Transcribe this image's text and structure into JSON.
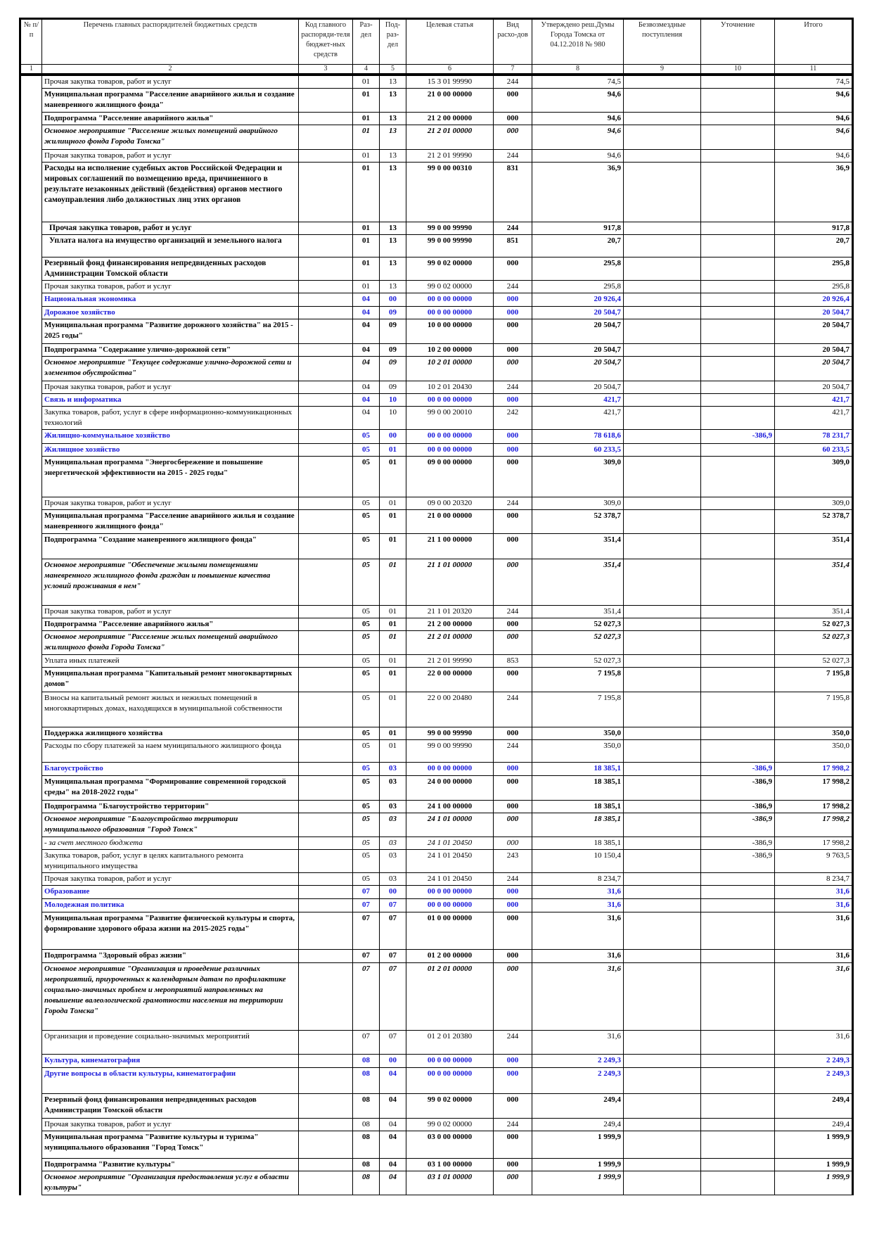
{
  "header": {
    "cols": [
      "№ п/п",
      "Перечень главных распорядителей бюджетных средств",
      "Код главного распоряди-теля бюджет-ных средств",
      "Раз-дел",
      "Под-раз-дел",
      "Целевая статья",
      "Вид расхо-дов",
      "Утверждено реш.Думы Города Томска от 04.12.2018 № 980",
      "Безвозмездные поступления",
      "Уточнение",
      "Итого"
    ],
    "nums": [
      "1",
      "2",
      "3",
      "4",
      "5",
      "6",
      "7",
      "8",
      "9",
      "10",
      "11"
    ]
  },
  "rows": [
    {
      "s": "n",
      "name": "Прочая закупка товаров, работ и услуг",
      "rz": "01",
      "pr": "13",
      "cs": "15 3 01 99990",
      "vr": "244",
      "c8": "74,5",
      "c9": "",
      "c10": "",
      "c11": "74,5"
    },
    {
      "s": "b",
      "name": "Муниципальная программа \"Расселение аварийного жилья и создание маневренного жилищного фонда\"",
      "rz": "01",
      "pr": "13",
      "cs": "21 0 00 00000",
      "vr": "000",
      "c8": "94,6",
      "c9": "",
      "c10": "",
      "c11": "94,6"
    },
    {
      "s": "b",
      "name": "Подпрограмма \"Расселение аварийного жилья\"",
      "rz": "01",
      "pr": "13",
      "cs": "21 2 00 00000",
      "vr": "000",
      "c8": "94,6",
      "c9": "",
      "c10": "",
      "c11": "94,6"
    },
    {
      "s": "i",
      "name": "Основное мероприятие \"Расселение жилых помещений аварийного жилищного фонда Города Томска\"",
      "rz": "01",
      "pr": "13",
      "cs": "21 2 01 00000",
      "vr": "000",
      "c8": "94,6",
      "c9": "",
      "c10": "",
      "c11": "94,6"
    },
    {
      "s": "n",
      "name": "Прочая закупка товаров, работ и услуг",
      "rz": "01",
      "pr": "13",
      "cs": "21 2 01 99990",
      "vr": "244",
      "c8": "94,6",
      "c9": "",
      "c10": "",
      "c11": "94,6"
    },
    {
      "s": "b2",
      "name": "Расходы на исполнение судебных актов Российской Федерации и мировых соглашений по возмещению вреда, причиненного в результате незаконных действий (бездействия) органов местного самоуправления либо должностных лиц этих органов",
      "rz": "01",
      "pr": "13",
      "cs": "99 0 00 00310",
      "vr": "831",
      "c8": "36,9",
      "c9": "",
      "c10": "",
      "c11": "36,9"
    },
    {
      "s": "b2",
      "name": "Прочая закупка товаров, работ и услуг",
      "rz": "01",
      "pr": "13",
      "cs": "99 0 00 99990",
      "vr": "244",
      "c8": "917,8",
      "c9": "",
      "c10": "",
      "c11": "917,8"
    },
    {
      "s": "b2",
      "name": "Уплата налога на имущество организаций и земельного налога",
      "rz": "01",
      "pr": "13",
      "cs": "99 0 00 99990",
      "vr": "851",
      "c8": "20,7",
      "c9": "",
      "c10": "",
      "c11": "20,7"
    },
    {
      "s": "b2",
      "name": "Резервный фонд финансирования непредвиденных расходов Администрации Томской области",
      "rz": "01",
      "pr": "13",
      "cs": "99 0 02 00000",
      "vr": "000",
      "c8": "295,8",
      "c9": "",
      "c10": "",
      "c11": "295,8"
    },
    {
      "s": "n",
      "name": "Прочая закупка товаров, работ и услуг",
      "rz": "01",
      "pr": "13",
      "cs": "99 0 02 00000",
      "vr": "244",
      "c8": "295,8",
      "c9": "",
      "c10": "",
      "c11": "295,8"
    },
    {
      "s": "blue",
      "name": "Национальная экономика",
      "rz": "04",
      "pr": "00",
      "cs": "00 0 00 00000",
      "vr": "000",
      "c8": "20 926,4",
      "c9": "",
      "c10": "",
      "c11": "20 926,4"
    },
    {
      "s": "blue",
      "name": "Дорожное хозяйство",
      "rz": "04",
      "pr": "09",
      "cs": "00 0 00 00000",
      "vr": "000",
      "c8": "20 504,7",
      "c9": "",
      "c10": "",
      "c11": "20 504,7"
    },
    {
      "s": "b",
      "name": "Муниципальная программа \"Развитие дорожного хозяйства\" на 2015 - 2025 годы\"",
      "rz": "04",
      "pr": "09",
      "cs": "10 0 00 00000",
      "vr": "000",
      "c8": "20 504,7",
      "c9": "",
      "c10": "",
      "c11": "20 504,7"
    },
    {
      "s": "b",
      "name": "Подпрограмма \"Содержание улично-дорожной сети\"",
      "rz": "04",
      "pr": "09",
      "cs": "10 2 00 00000",
      "vr": "000",
      "c8": "20 504,7",
      "c9": "",
      "c10": "",
      "c11": "20 504,7"
    },
    {
      "s": "i",
      "name": "Основное мероприятие \"Текущее содержание улично-дорожной сети и элементов обустройства\"",
      "rz": "04",
      "pr": "09",
      "cs": "10 2 01 00000",
      "vr": "000",
      "c8": "20 504,7",
      "c9": "",
      "c10": "",
      "c11": "20 504,7"
    },
    {
      "s": "n",
      "name": "Прочая закупка товаров, работ и услуг",
      "rz": "04",
      "pr": "09",
      "cs": "10 2 01 20430",
      "vr": "244",
      "c8": "20 504,7",
      "c9": "",
      "c10": "",
      "c11": "20 504,7"
    },
    {
      "s": "blue",
      "name": "Связь и информатика",
      "rz": "04",
      "pr": "10",
      "cs": "00 0 00 00000",
      "vr": "000",
      "c8": "421,7",
      "c9": "",
      "c10": "",
      "c11": "421,7"
    },
    {
      "s": "n0",
      "name": "Закупка товаров, работ, услуг в сфере информационно-коммуникационных технологий",
      "rz": "04",
      "pr": "10",
      "cs": "99 0 00 20010",
      "vr": "242",
      "c8": "421,7",
      "c9": "",
      "c10": "",
      "c11": "421,7"
    },
    {
      "s": "blue",
      "name": "Жилищно-коммунальное хозяйство",
      "rz": "05",
      "pr": "00",
      "cs": "00 0 00 00000",
      "vr": "000",
      "c8": "78 618,6",
      "c9": "",
      "c10": "-386,9",
      "c11": "78 231,7"
    },
    {
      "s": "blue",
      "name": "Жилищное хозяйство",
      "rz": "05",
      "pr": "01",
      "cs": "00 0 00 00000",
      "vr": "000",
      "c8": "60 233,5",
      "c9": "",
      "c10": "",
      "c11": "60 233,5"
    },
    {
      "s": "b",
      "name": "Муниципальная программа \"Энергосбережение и повышение энергетической эффективности на 2015 - 2025 годы\"",
      "rz": "05",
      "pr": "01",
      "cs": "09 0 00 00000",
      "vr": "000",
      "c8": "309,0",
      "c9": "",
      "c10": "",
      "c11": "309,0"
    },
    {
      "s": "n",
      "name": "Прочая закупка товаров, работ и услуг",
      "rz": "05",
      "pr": "01",
      "cs": "09 0 00 20320",
      "vr": "244",
      "c8": "309,0",
      "c9": "",
      "c10": "",
      "c11": "309,0"
    },
    {
      "s": "b",
      "name": "Муниципальная программа \"Расселение аварийного жилья и создание маневренного жилищного фонда\"",
      "rz": "05",
      "pr": "01",
      "cs": "21 0 00 00000",
      "vr": "000",
      "c8": "52 378,7",
      "c9": "",
      "c10": "",
      "c11": "52 378,7"
    },
    {
      "s": "b",
      "name": "Подпрограмма \"Создание маневренного жилищного фонда\"",
      "rz": "05",
      "pr": "01",
      "cs": "21 1 00 00000",
      "vr": "000",
      "c8": "351,4",
      "c9": "",
      "c10": "",
      "c11": "351,4"
    },
    {
      "s": "i",
      "name": "Основное мероприятие \"Обеспечение жилыми помещениями маневренного жилищного фонда граждан и повышение качества условий проживания в нем\"",
      "rz": "05",
      "pr": "01",
      "cs": "21 1 01 00000",
      "vr": "000",
      "c8": "351,4",
      "c9": "",
      "c10": "",
      "c11": "351,4"
    },
    {
      "s": "n",
      "name": "Прочая закупка товаров, работ и услуг",
      "rz": "05",
      "pr": "01",
      "cs": "21 1 01 20320",
      "vr": "244",
      "c8": "351,4",
      "c9": "",
      "c10": "",
      "c11": "351,4"
    },
    {
      "s": "b",
      "name": "Подпрограмма \"Расселение аварийного жилья\"",
      "rz": "05",
      "pr": "01",
      "cs": "21 2 00 00000",
      "vr": "000",
      "c8": "52 027,3",
      "c9": "",
      "c10": "",
      "c11": "52 027,3"
    },
    {
      "s": "i",
      "name": "Основное мероприятие \"Расселение жилых помещений аварийного жилищного фонда Города Томска\"",
      "rz": "05",
      "pr": "01",
      "cs": "21 2 01 00000",
      "vr": "000",
      "c8": "52 027,3",
      "c9": "",
      "c10": "",
      "c11": "52 027,3"
    },
    {
      "s": "n0",
      "name": "Уплата иных платежей",
      "rz": "05",
      "pr": "01",
      "cs": "21 2 01 99990",
      "vr": "853",
      "c8": "52 027,3",
      "c9": "",
      "c10": "",
      "c11": "52 027,3"
    },
    {
      "s": "b",
      "name": "Муниципальная программа \"Капитальный ремонт многоквартирных домов\"",
      "rz": "05",
      "pr": "01",
      "cs": "22 0 00 00000",
      "vr": "000",
      "c8": "7 195,8",
      "c9": "",
      "c10": "",
      "c11": "7 195,8"
    },
    {
      "s": "n",
      "name": "Взносы на капитальный ремонт жилых и нежилых помещений в многоквартирных домах, находящихся в муниципальной собственности",
      "rz": "05",
      "pr": "01",
      "cs": "22 0 00 20480",
      "vr": "244",
      "c8": "7 195,8",
      "c9": "",
      "c10": "",
      "c11": "7 195,8"
    },
    {
      "s": "b",
      "name": "Поддержка жилищного хозяйства",
      "rz": "05",
      "pr": "01",
      "cs": "99 0 00 99990",
      "vr": "000",
      "c8": "350,0",
      "c9": "",
      "c10": "",
      "c11": "350,0"
    },
    {
      "s": "n",
      "name": "Расходы по сбору платежей за наем муниципального жилищного фонда",
      "rz": "05",
      "pr": "01",
      "cs": "99 0 00 99990",
      "vr": "244",
      "c8": "350,0",
      "c9": "",
      "c10": "",
      "c11": "350,0"
    },
    {
      "s": "blue",
      "name": "Благоустройство",
      "rz": "05",
      "pr": "03",
      "cs": "00 0 00 00000",
      "vr": "000",
      "c8": "18 385,1",
      "c9": "",
      "c10": "-386,9",
      "c11": "17 998,2"
    },
    {
      "s": "b",
      "name": "Муниципальная программа \"Формирование современной городской среды\" на 2018-2022 годы\"",
      "rz": "05",
      "pr": "03",
      "cs": "24 0 00 00000",
      "vr": "000",
      "c8": "18 385,1",
      "c9": "",
      "c10": "-386,9",
      "c11": "17 998,2"
    },
    {
      "s": "b",
      "name": "Подпрограмма \"Благоустройство территории\"",
      "rz": "05",
      "pr": "03",
      "cs": "24 1 00 00000",
      "vr": "000",
      "c8": "18 385,1",
      "c9": "",
      "c10": "-386,9",
      "c11": "17 998,2"
    },
    {
      "s": "i",
      "name": "Основное мероприятие \"Благоустройство территории муниципального образования \"Город Томск\"",
      "rz": "05",
      "pr": "03",
      "cs": "24 1 01 00000",
      "vr": "000",
      "c8": "18 385,1",
      "c9": "",
      "c10": "-386,9",
      "c11": "17 998,2"
    },
    {
      "s": "il",
      "name": "- за счет местного бюджета",
      "rz": "05",
      "pr": "03",
      "cs": "24 1 01 20450",
      "vr": "000",
      "c8": "18 385,1",
      "c9": "",
      "c10": "-386,9",
      "c11": "17 998,2"
    },
    {
      "s": "n",
      "name": "Закупка товаров, работ, услуг в целях капитального ремонта муниципального имущества",
      "rz": "05",
      "pr": "03",
      "cs": "24 1 01 20450",
      "vr": "243",
      "c8": "10 150,4",
      "c9": "",
      "c10": "-386,9",
      "c11": "9 763,5"
    },
    {
      "s": "n",
      "name": "Прочая закупка товаров, работ и услуг",
      "rz": "05",
      "pr": "03",
      "cs": "24 1 01 20450",
      "vr": "244",
      "c8": "8 234,7",
      "c9": "",
      "c10": "",
      "c11": "8 234,7"
    },
    {
      "s": "blue",
      "name": "Образование",
      "rz": "07",
      "pr": "00",
      "cs": "00 0 00 00000",
      "vr": "000",
      "c8": "31,6",
      "c9": "",
      "c10": "",
      "c11": "31,6"
    },
    {
      "s": "blue",
      "name": "Молодежная политика",
      "rz": "07",
      "pr": "07",
      "cs": "00 0 00 00000",
      "vr": "000",
      "c8": "31,6",
      "c9": "",
      "c10": "",
      "c11": "31,6"
    },
    {
      "s": "b",
      "name": "Муниципальная программа \"Развитие физической культуры и спорта, формирование здорового образа жизни на 2015-2025 годы\"",
      "rz": "07",
      "pr": "07",
      "cs": "01 0 00 00000",
      "vr": "000",
      "c8": "31,6",
      "c9": "",
      "c10": "",
      "c11": "31,6"
    },
    {
      "s": "b",
      "name": "Подпрограмма \"Здоровый образ жизни\"",
      "rz": "07",
      "pr": "07",
      "cs": "01 2 00 00000",
      "vr": "000",
      "c8": "31,6",
      "c9": "",
      "c10": "",
      "c11": "31,6"
    },
    {
      "s": "i",
      "name": "Основное мероприятие \"Организация и проведение различных мероприятий, приуроченных к календарным датам по профилактике социально-значимых проблем и мероприятий направленных на повышение валеологической грамотности населения на территории Города Томска\"",
      "rz": "07",
      "pr": "07",
      "cs": "01 2 01 00000",
      "vr": "000",
      "c8": "31,6",
      "c9": "",
      "c10": "",
      "c11": "31,6"
    },
    {
      "s": "n",
      "name": "Организация и проведение социально-значимых мероприятий",
      "rz": "07",
      "pr": "07",
      "cs": "01 2 01 20380",
      "vr": "244",
      "c8": "31,6",
      "c9": "",
      "c10": "",
      "c11": "31,6"
    },
    {
      "s": "blue",
      "name": "Культура, кинематография",
      "rz": "08",
      "pr": "00",
      "cs": "00 0 00 00000",
      "vr": "000",
      "c8": "2 249,3",
      "c9": "",
      "c10": "",
      "c11": "2 249,3"
    },
    {
      "s": "blue",
      "name": "Другие вопросы в области культуры, кинематографии",
      "rz": "08",
      "pr": "04",
      "cs": "00 0 00 00000",
      "vr": "000",
      "c8": "2 249,3",
      "c9": "",
      "c10": "",
      "c11": "2 249,3"
    },
    {
      "s": "b",
      "name": "Резервный фонд финансирования непредвиденных расходов Администрации Томской области",
      "rz": "08",
      "pr": "04",
      "cs": "99 0 02 00000",
      "vr": "000",
      "c8": "249,4",
      "c9": "",
      "c10": "",
      "c11": "249,4"
    },
    {
      "s": "n",
      "name": "Прочая закупка товаров, работ и услуг",
      "rz": "08",
      "pr": "04",
      "cs": "99 0 02 00000",
      "vr": "244",
      "c8": "249,4",
      "c9": "",
      "c10": "",
      "c11": "249,4"
    },
    {
      "s": "b",
      "name": "Муниципальная программа \"Развитие культуры и туризма\" муниципального образования \"Город Томск\"",
      "rz": "08",
      "pr": "04",
      "cs": "03 0 00 00000",
      "vr": "000",
      "c8": "1 999,9",
      "c9": "",
      "c10": "",
      "c11": "1 999,9"
    },
    {
      "s": "b",
      "name": "Подпрограмма \"Развитие культуры\"",
      "rz": "08",
      "pr": "04",
      "cs": "03 1 00 00000",
      "vr": "000",
      "c8": "1 999,9",
      "c9": "",
      "c10": "",
      "c11": "1 999,9"
    },
    {
      "s": "i",
      "name": "Основное мероприятие \"Организация предоставления услуг в области культуры\"",
      "rz": "08",
      "pr": "04",
      "cs": "03 1 01 00000",
      "vr": "000",
      "c8": "1 999,9",
      "c9": "",
      "c10": "",
      "c11": "1 999,9"
    }
  ]
}
